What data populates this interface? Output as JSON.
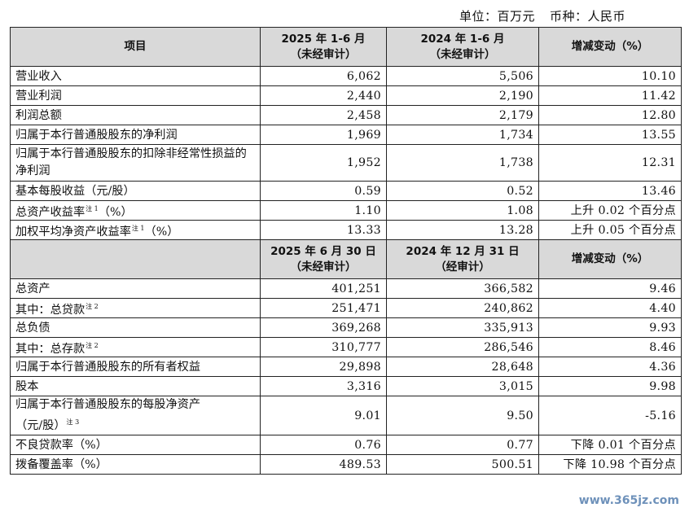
{
  "unit_line": {
    "unit": "单位：百万元",
    "currency": "币种：人民币"
  },
  "section1": {
    "headers": [
      "项目",
      "2025 年 1-6 月",
      "（未经审计）",
      "2024 年 1-6 月",
      "（未经审计）",
      "增减变动（%）"
    ],
    "rows": [
      {
        "label": "营业收入",
        "note": "",
        "v1": "6,062",
        "v2": "5,506",
        "change": "10.10"
      },
      {
        "label": "营业利润",
        "note": "",
        "v1": "2,440",
        "v2": "2,190",
        "change": "11.42"
      },
      {
        "label": "利润总额",
        "note": "",
        "v1": "2,458",
        "v2": "2,179",
        "change": "12.80"
      },
      {
        "label": "归属于本行普通股股东的净利润",
        "note": "",
        "v1": "1,969",
        "v2": "1,734",
        "change": "13.55"
      },
      {
        "label": "归属于本行普通股股东的扣除非经常性损益的净利润",
        "note": "",
        "v1": "1,952",
        "v2": "1,738",
        "change": "12.31"
      },
      {
        "label": "基本每股收益（元/股）",
        "note": "",
        "v1": "0.59",
        "v2": "0.52",
        "change": "13.46"
      },
      {
        "label": "总资产收益率",
        "note": "注 1",
        "suffix": "（%）",
        "v1": "1.10",
        "v2": "1.08",
        "change": "上升 0.02 个百分点"
      },
      {
        "label": "加权平均净资产收益率",
        "note": "注 1",
        "suffix": "（%）",
        "v1": "13.33",
        "v2": "13.28",
        "change": "上升 0.05 个百分点"
      }
    ]
  },
  "section2": {
    "headers": [
      "2025 年 6 月 30 日",
      "（未经审计）",
      "2024 年 12 月 31 日",
      "（经审计）",
      "增减变动（%）"
    ],
    "rows": [
      {
        "label": "总资产",
        "v1": "401,251",
        "v2": "366,582",
        "change": "9.46"
      },
      {
        "label": "其中：总贷款",
        "note": "注 2",
        "v1": "251,471",
        "v2": "240,862",
        "change": "4.40"
      },
      {
        "label": "总负债",
        "v1": "369,268",
        "v2": "335,913",
        "change": "9.93"
      },
      {
        "label": "其中：总存款",
        "note": "注 2",
        "v1": "310,777",
        "v2": "286,546",
        "change": "8.46"
      },
      {
        "label": "归属于本行普通股股东的所有者权益",
        "v1": "29,898",
        "v2": "28,648",
        "change": "4.36"
      },
      {
        "label": "股本",
        "v1": "3,316",
        "v2": "3,015",
        "change": "9.98"
      },
      {
        "label": "归属于本行普通股股东的每股净资产",
        "label2": "（元/股）",
        "note": "注 3",
        "v1": "9.01",
        "v2": "9.50",
        "change": "-5.16"
      },
      {
        "label": "不良贷款率（%）",
        "v1": "0.76",
        "v2": "0.77",
        "change": "下降 0.01 个百分点"
      },
      {
        "label": "拨备覆盖率（%）",
        "v1": "489.53",
        "v2": "500.51",
        "change": "下降 10.98 个百分点"
      }
    ]
  },
  "watermark": "www.365jz.com"
}
